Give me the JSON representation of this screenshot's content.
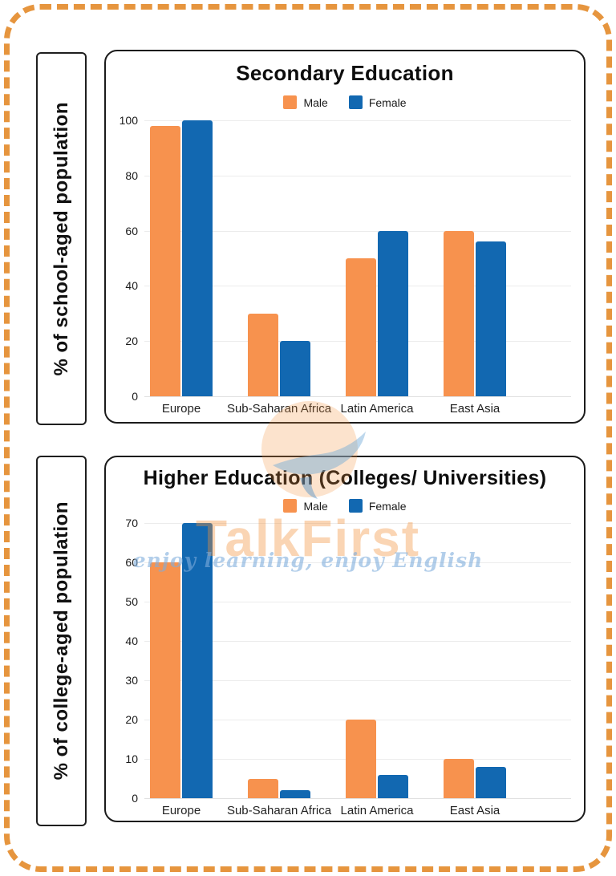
{
  "frame": {
    "border_color": "#E6953E",
    "background": "#FFFFFF"
  },
  "side_labels": {
    "top": "% of school-aged population",
    "bottom": "% of college-aged population"
  },
  "watermark": {
    "brand": "TalkFirst",
    "tagline": "enjoy learning, enjoy English",
    "brand_color": "#F3913A",
    "tagline_color": "#7FAEDC",
    "logo": "speech-bubble-logo"
  },
  "colors": {
    "male": "#F7924E",
    "female": "#1268B1",
    "gridline": "#ECECEC"
  },
  "chart_data": [
    {
      "type": "bar",
      "title": "Secondary Education",
      "categories": [
        "Europe",
        "Sub-Saharan Africa",
        "Latin America",
        "East Asia"
      ],
      "series": [
        {
          "name": "Male",
          "color": "#F7924E",
          "values": [
            98,
            30,
            50,
            60
          ]
        },
        {
          "name": "Female",
          "color": "#1268B1",
          "values": [
            100,
            20,
            60,
            56
          ]
        }
      ],
      "xlabel": "",
      "ylabel": "% of school-aged population",
      "ylim": [
        0,
        100
      ],
      "yticks": [
        0,
        20,
        40,
        60,
        80,
        100
      ],
      "grid": true,
      "legend_position": "top"
    },
    {
      "type": "bar",
      "title": "Higher Education (Colleges/ Universities)",
      "categories": [
        "Europe",
        "Sub-Saharan Africa",
        "Latin America",
        "East Asia"
      ],
      "series": [
        {
          "name": "Male",
          "color": "#F7924E",
          "values": [
            60,
            5,
            20,
            10
          ]
        },
        {
          "name": "Female",
          "color": "#1268B1",
          "values": [
            70,
            2,
            6,
            8
          ]
        }
      ],
      "xlabel": "",
      "ylabel": "% of college-aged population",
      "ylim": [
        0,
        70
      ],
      "yticks": [
        0,
        10,
        20,
        30,
        40,
        50,
        60,
        70
      ],
      "grid": true,
      "legend_position": "top"
    }
  ]
}
